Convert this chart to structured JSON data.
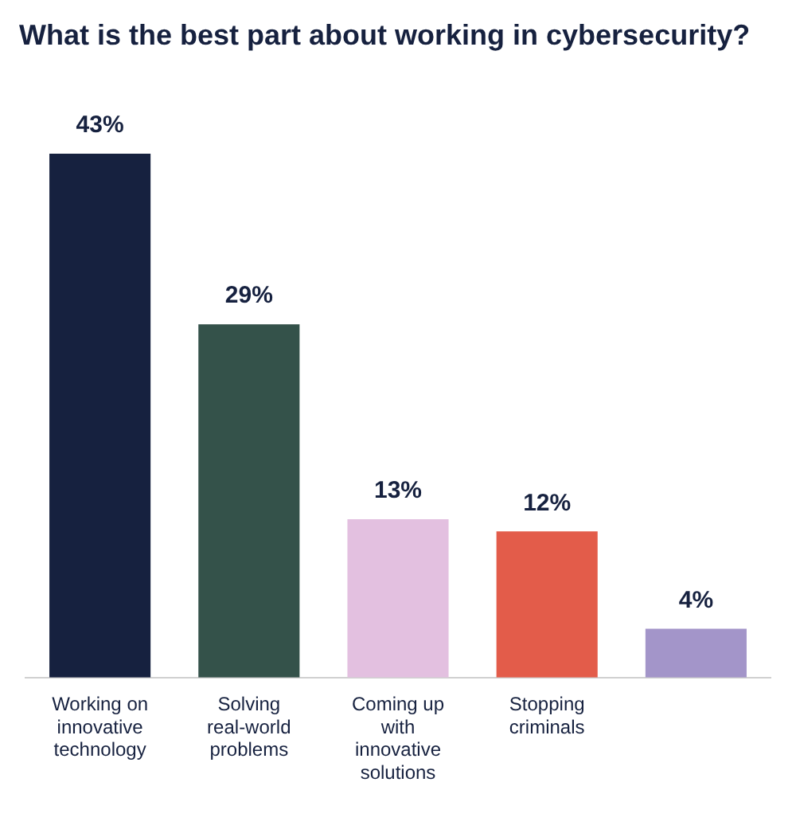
{
  "chart_data": {
    "type": "bar",
    "title": "What is the best part about working in cybersecurity?",
    "categories": [
      "Working on innovative technology",
      "Solving real-world problems",
      "Coming up with innovative solutions",
      "Stopping criminals",
      null
    ],
    "values": [
      43,
      29,
      13,
      12,
      4
    ],
    "value_labels": [
      "43%",
      "29%",
      "13%",
      "12%",
      "4%"
    ],
    "colors": [
      "#16213f",
      "#34524a",
      "#e3c0e0",
      "#e35c4a",
      "#a395c9"
    ],
    "grid": false,
    "legend": false
  }
}
